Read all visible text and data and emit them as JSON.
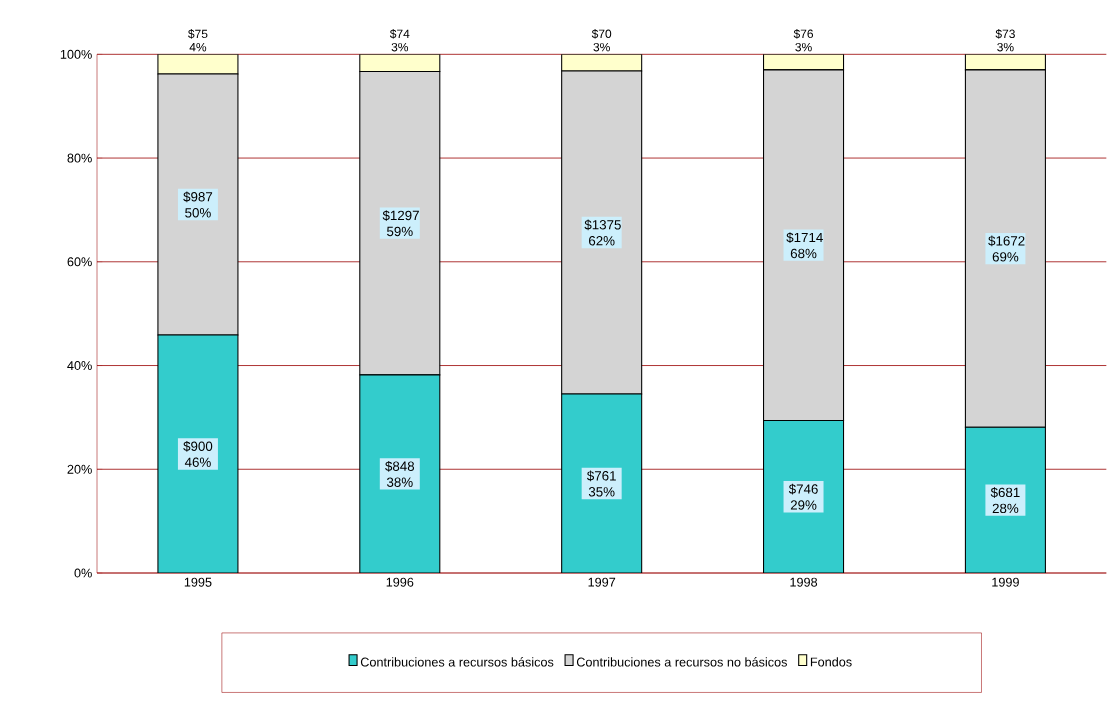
{
  "chart_data": {
    "type": "bar",
    "stacked": true,
    "categories": [
      "1995",
      "1996",
      "1997",
      "1998",
      "1999"
    ],
    "series": [
      {
        "name": "Contribuciones a recursos básicos",
        "color": "#33cccc",
        "values": [
          45.9,
          38.2,
          34.5,
          29.4,
          28.1
        ],
        "value_labels": [
          "$900 46%",
          "$848 38%",
          "$761 35%",
          "$746 29%",
          "$681 28%"
        ]
      },
      {
        "name": "Contribuciones a recursos no básicos",
        "color": "#d4d4d4",
        "values": [
          50.3,
          58.5,
          62.3,
          67.6,
          68.9
        ],
        "value_labels": [
          "$987 50%",
          "$1297 59%",
          "$1375 62%",
          "$1714 68%",
          "$1672 69%"
        ]
      },
      {
        "name": "Fondos",
        "color": "#ffffcc",
        "values": [
          3.8,
          3.3,
          3.2,
          3.0,
          3.0
        ],
        "value_labels": [
          "$75 4%",
          "$74 3%",
          "$70 3%",
          "$76 3%",
          "$73 3%"
        ]
      }
    ],
    "ylim": [
      0,
      100
    ],
    "yticks": [
      {
        "value": 0,
        "label": "0%"
      },
      {
        "value": 20,
        "label": "20%"
      },
      {
        "value": 40,
        "label": "40%"
      },
      {
        "value": 60,
        "label": "60%"
      },
      {
        "value": 80,
        "label": "80%"
      },
      {
        "value": 100,
        "label": "100%"
      }
    ],
    "grid": "y",
    "legend": "bottom"
  }
}
